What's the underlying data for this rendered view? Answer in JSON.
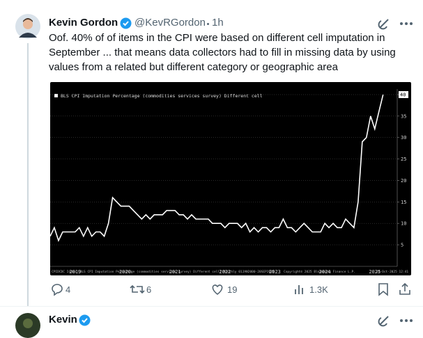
{
  "tweet": {
    "author": {
      "name": "Kevin Gordon",
      "handle": "@KevRGordon",
      "time": "1h"
    },
    "text": "Oof. 40% of of items in the CPI were based on different cell imputation in September ... that means data collectors had to fill in missing data by using values from a related but different category or geographic area",
    "actions": {
      "replies": "4",
      "reposts": "6",
      "likes": "19",
      "views": "1.3K"
    }
  },
  "next_tweet": {
    "author": {
      "name": "Kevin"
    }
  },
  "chart_data": {
    "type": "line",
    "title": "BLS CPI Imputation Percentage (commodities services survey) Different cell",
    "footer": "CPIDCDC Index (BLS CPI Imputation Percentage (commodities services survey) Different cell) Monthly 01JAN2000-20SEP2025",
    "copyright": "Copyright© 2025 Bloomberg Finance L.P.",
    "date": "24-Oct-2025 12:41",
    "x": [
      2019,
      2019.083,
      2019.167,
      2019.25,
      2019.333,
      2019.417,
      2019.5,
      2019.583,
      2019.667,
      2019.75,
      2019.833,
      2019.917,
      2020,
      2020.083,
      2020.167,
      2020.25,
      2020.333,
      2020.417,
      2020.5,
      2020.583,
      2020.667,
      2020.75,
      2020.833,
      2020.917,
      2021,
      2021.083,
      2021.167,
      2021.25,
      2021.333,
      2021.417,
      2021.5,
      2021.583,
      2021.667,
      2021.75,
      2021.833,
      2021.917,
      2022,
      2022.083,
      2022.167,
      2022.25,
      2022.333,
      2022.417,
      2022.5,
      2022.583,
      2022.667,
      2022.75,
      2022.833,
      2022.917,
      2023,
      2023.083,
      2023.167,
      2023.25,
      2023.333,
      2023.417,
      2023.5,
      2023.583,
      2023.667,
      2023.75,
      2023.833,
      2023.917,
      2024,
      2024.083,
      2024.167,
      2024.25,
      2024.333,
      2024.417,
      2024.5,
      2024.583,
      2024.667,
      2024.75,
      2024.833,
      2024.917,
      2025,
      2025.083,
      2025.167,
      2025.25,
      2025.333,
      2025.417,
      2025.5,
      2025.583,
      2025.667
    ],
    "series": [
      {
        "color": "#ffffff",
        "values": [
          7,
          9,
          6,
          8,
          8,
          8,
          8,
          9,
          7,
          9,
          7,
          8,
          8,
          7,
          10,
          16,
          15,
          14,
          14,
          14,
          13,
          12,
          11,
          12,
          11,
          12,
          12,
          12,
          13,
          13,
          13,
          12,
          12,
          11,
          12,
          11,
          11,
          11,
          11,
          10,
          10,
          10,
          9,
          10,
          10,
          10,
          9,
          10,
          8,
          9,
          8,
          9,
          9,
          8,
          9,
          9,
          11,
          9,
          9,
          8,
          9,
          10,
          9,
          8,
          8,
          8,
          10,
          9,
          10,
          9,
          9,
          11,
          10,
          9,
          15,
          29,
          30,
          35,
          32,
          36,
          40
        ]
      }
    ],
    "xlim": [
      2019,
      2025.95
    ],
    "xticks": [
      {
        "value": 2019.5,
        "label": "2019"
      },
      {
        "value": 2020.5,
        "label": "2020"
      },
      {
        "value": 2021.5,
        "label": "2021"
      },
      {
        "value": 2022.5,
        "label": "2022"
      },
      {
        "value": 2023.5,
        "label": "2023"
      },
      {
        "value": 2024.5,
        "label": "2024"
      },
      {
        "value": 2025.5,
        "label": "2025"
      }
    ],
    "ylim": [
      1.6,
      41.3
    ],
    "yticks": [
      5,
      10,
      15,
      20,
      25,
      30,
      35,
      40
    ],
    "grid": true
  }
}
